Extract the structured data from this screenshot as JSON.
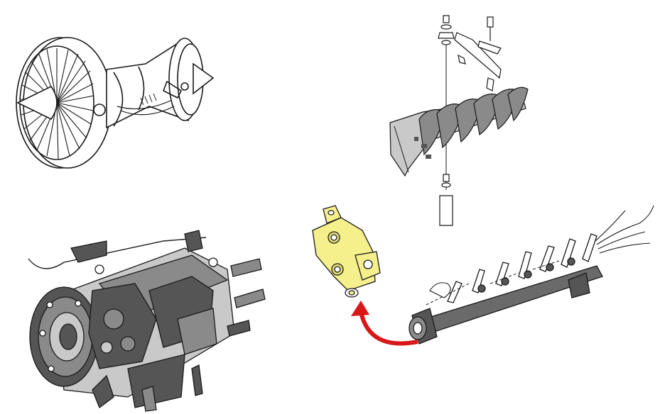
{
  "figures": [
    {
      "id": "turbofan-engine",
      "icon": "turbofan-engine-icon"
    },
    {
      "id": "fuel-control-unit",
      "icon": "fuel-control-unit-icon"
    },
    {
      "id": "variable-stator-vanes",
      "icon": "stator-vane-assembly-icon"
    },
    {
      "id": "actuator-shaft",
      "icon": "actuator-shaft-icon"
    },
    {
      "id": "highlighted-actuator",
      "icon": "actuator-icon",
      "highlight_color": "#f5ef8c"
    }
  ],
  "colors": {
    "line": "#1a1a1a",
    "dark_fill": "#555555",
    "mid_fill": "#8a8a8a",
    "light_fill": "#c9c9c9",
    "highlight": "#f5ef8c",
    "arrow": "#d81818",
    "background": "#ffffff"
  }
}
